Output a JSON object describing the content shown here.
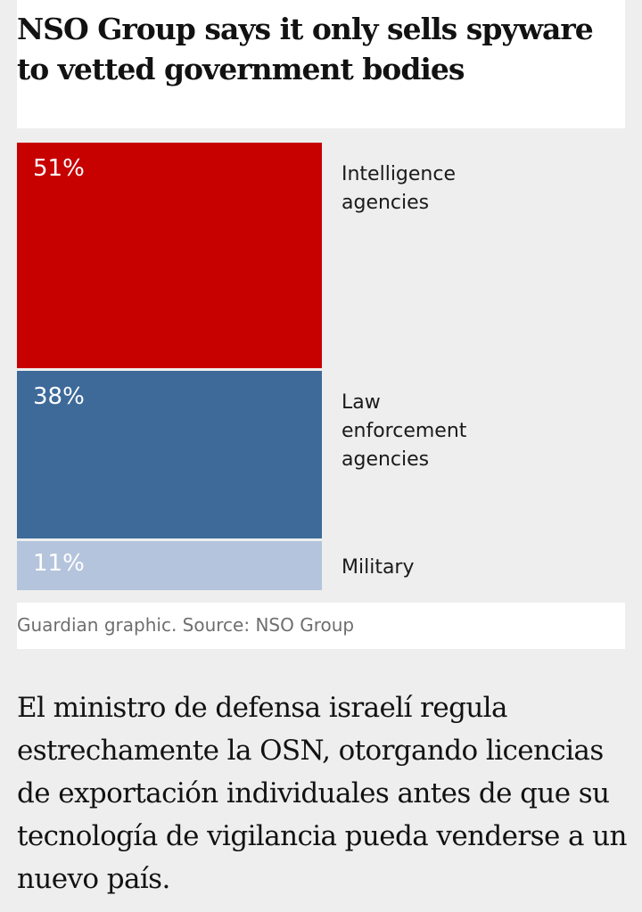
{
  "title": "NSO Group says it only sells spyware to vetted government bodies",
  "source": "Guardian graphic. Source: NSO Group",
  "body_text": "El ministro de defensa israelí regula estrechamente la OSN, otorgando licencias de exportación individuales antes de que su tecnología de vigilancia pueda venderse a un nuevo país.",
  "chart_data": {
    "type": "stacked-bar",
    "unit": "%",
    "segments": [
      {
        "label": "Intelligence agencies",
        "value": 51,
        "value_label": "51%",
        "color": "#c70000",
        "text_color": "#ffffff"
      },
      {
        "label": "Law enforcement agencies",
        "value": 38,
        "value_label": "38%",
        "color": "#3d6a99",
        "text_color": "#ffffff"
      },
      {
        "label": "Military",
        "value": 11,
        "value_label": "11%",
        "color": "#b4c4dc",
        "text_color": "#ffffff"
      }
    ]
  }
}
